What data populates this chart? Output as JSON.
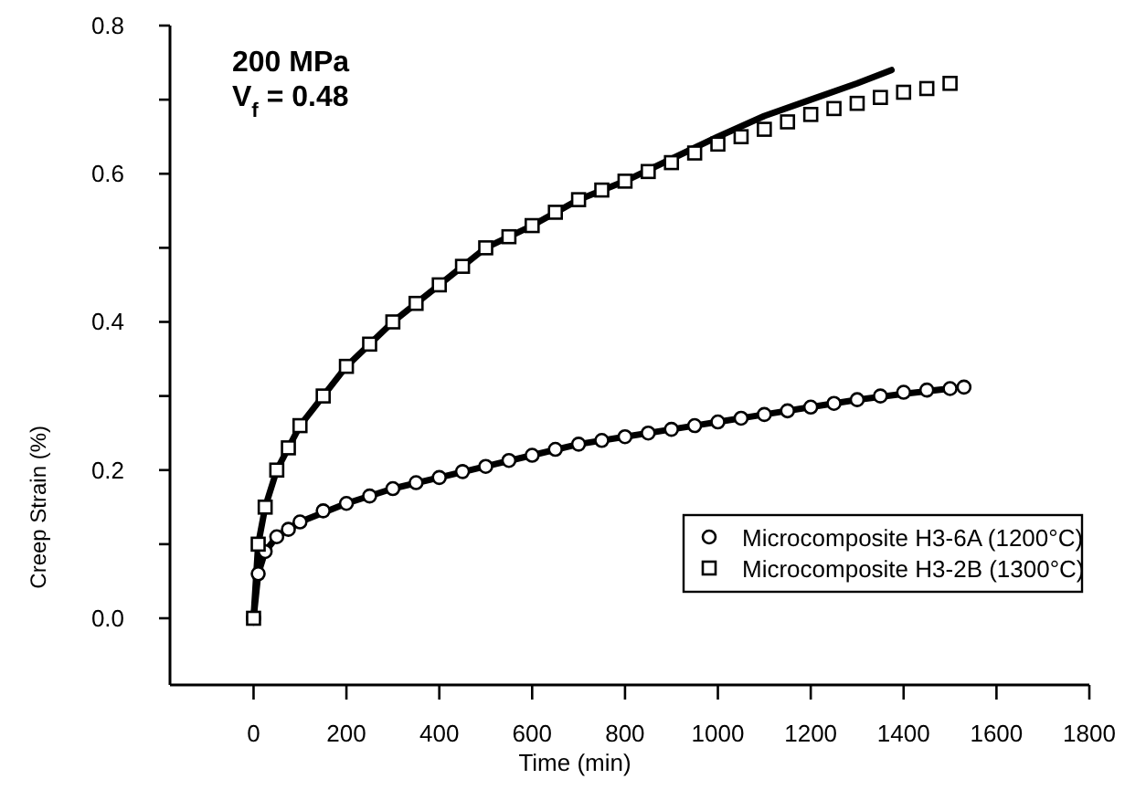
{
  "chart_data": {
    "type": "scatter",
    "xlabel": "Time (min)",
    "ylabel": "Creep Strain (%)",
    "annotations": [
      "200 MPa",
      "V$_{f}$ = 0.48"
    ],
    "xlim": [
      -180,
      1800
    ],
    "xticks": [
      0,
      200,
      400,
      600,
      800,
      1000,
      1200,
      1400,
      1600,
      1800
    ],
    "ylim": [
      -0.09,
      0.8
    ],
    "yticks": [
      {
        "value": 0,
        "label": "0.0"
      },
      {
        "value": 0.1,
        "label": null
      },
      0.2,
      {
        "value": 0.3,
        "label": null
      },
      0.4,
      {
        "value": 0.5,
        "label": null
      },
      0.6,
      {
        "value": 0.7,
        "label": null
      },
      0.8
    ],
    "grid": false,
    "legend": "bottom right",
    "series": [
      {
        "name": "Microcomposite H3-6A (1200°C)",
        "marker": "circle",
        "color": "#000000",
        "x": [
          0,
          10,
          25,
          50,
          75,
          100,
          150,
          200,
          250,
          300,
          350,
          400,
          450,
          500,
          550,
          600,
          650,
          700,
          750,
          800,
          850,
          900,
          950,
          1000,
          1050,
          1100,
          1150,
          1200,
          1250,
          1300,
          1350,
          1400,
          1450,
          1500,
          1530
        ],
        "values": [
          0,
          0.06,
          0.09,
          0.11,
          0.12,
          0.13,
          0.145,
          0.155,
          0.165,
          0.175,
          0.183,
          0.19,
          0.198,
          0.205,
          0.213,
          0.22,
          0.228,
          0.235,
          0.24,
          0.245,
          0.25,
          0.255,
          0.26,
          0.265,
          0.27,
          0.275,
          0.28,
          0.285,
          0.29,
          0.295,
          0.3,
          0.305,
          0.308,
          0.31,
          0.312
        ]
      },
      {
        "name": "Microcomposite H3-2B (1300°C)",
        "marker": "square",
        "color": "#000000",
        "x": [
          0,
          10,
          25,
          50,
          75,
          100,
          150,
          200,
          250,
          300,
          350,
          400,
          450,
          500,
          550,
          600,
          650,
          700,
          750,
          800,
          850,
          900,
          950,
          1000,
          1050,
          1100,
          1150,
          1200,
          1250,
          1300,
          1350,
          1400,
          1450,
          1500
        ],
        "values": [
          0,
          0.1,
          0.15,
          0.2,
          0.23,
          0.26,
          0.3,
          0.34,
          0.37,
          0.4,
          0.425,
          0.45,
          0.475,
          0.5,
          0.515,
          0.53,
          0.548,
          0.565,
          0.578,
          0.59,
          0.603,
          0.615,
          0.628,
          0.64,
          0.65,
          0.66,
          0.67,
          0.68,
          0.688,
          0.695,
          0.703,
          0.71,
          0.715,
          0.722
        ]
      },
      {
        "type": "line",
        "marker": "none",
        "line_style": "solid",
        "color": "#000000",
        "x": [
          0,
          10,
          25,
          50,
          100,
          150,
          200,
          300,
          400,
          500,
          600,
          700,
          800,
          900,
          1000,
          1100,
          1200,
          1300,
          1374
        ],
        "values": [
          0,
          0.1,
          0.15,
          0.2,
          0.26,
          0.3,
          0.34,
          0.4,
          0.45,
          0.5,
          0.53,
          0.565,
          0.59,
          0.62,
          0.65,
          0.678,
          0.7,
          0.722,
          0.74
        ]
      },
      {
        "type": "line",
        "marker": "none",
        "line_style": "solid",
        "color": "#000000",
        "x": [
          0,
          10,
          25,
          50,
          100,
          200,
          300,
          400,
          500,
          600,
          700,
          800,
          900,
          1000,
          1100,
          1200,
          1300,
          1400,
          1500
        ],
        "values": [
          0,
          0.06,
          0.09,
          0.11,
          0.13,
          0.155,
          0.175,
          0.19,
          0.205,
          0.22,
          0.235,
          0.245,
          0.255,
          0.265,
          0.275,
          0.285,
          0.295,
          0.303,
          0.31
        ]
      }
    ]
  }
}
